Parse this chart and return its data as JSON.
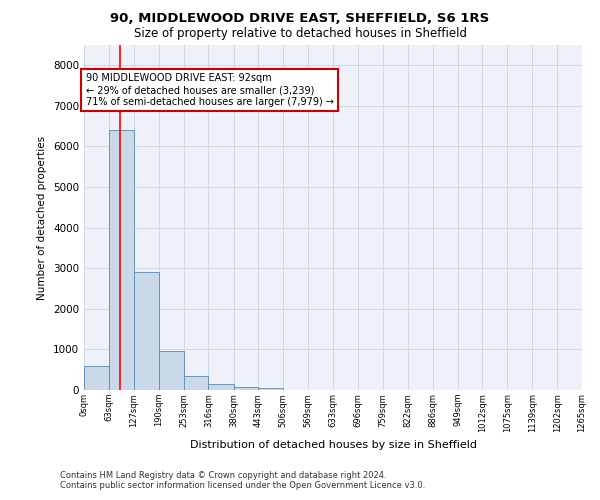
{
  "title1": "90, MIDDLEWOOD DRIVE EAST, SHEFFIELD, S6 1RS",
  "title2": "Size of property relative to detached houses in Sheffield",
  "xlabel": "Distribution of detached houses by size in Sheffield",
  "ylabel": "Number of detached properties",
  "footer1": "Contains HM Land Registry data © Crown copyright and database right 2024.",
  "footer2": "Contains public sector information licensed under the Open Government Licence v3.0.",
  "bin_labels": [
    "0sqm",
    "63sqm",
    "127sqm",
    "190sqm",
    "253sqm",
    "316sqm",
    "380sqm",
    "443sqm",
    "506sqm",
    "569sqm",
    "633sqm",
    "696sqm",
    "759sqm",
    "822sqm",
    "886sqm",
    "949sqm",
    "1012sqm",
    "1075sqm",
    "1139sqm",
    "1202sqm",
    "1265sqm"
  ],
  "bin_edges": [
    0,
    63,
    127,
    190,
    253,
    316,
    380,
    443,
    506,
    569,
    633,
    696,
    759,
    822,
    886,
    949,
    1012,
    1075,
    1139,
    1202,
    1265
  ],
  "bar_heights": [
    600,
    6400,
    2900,
    950,
    350,
    150,
    80,
    50,
    5,
    3,
    2,
    1,
    1,
    0,
    0,
    0,
    0,
    0,
    0,
    0
  ],
  "bar_color": "#c9d9e8",
  "bar_edgecolor": "#5a8ab0",
  "grid_color": "#d0d8e8",
  "background_color": "#eef2f8",
  "red_line_x": 92,
  "annotation_text1": "90 MIDDLEWOOD DRIVE EAST: 92sqm",
  "annotation_text2": "← 29% of detached houses are smaller (3,239)",
  "annotation_text3": "71% of semi-detached houses are larger (7,979) →",
  "annotation_box_color": "#cc0000",
  "ylim": [
    0,
    8500
  ],
  "yticks": [
    0,
    1000,
    2000,
    3000,
    4000,
    5000,
    6000,
    7000,
    8000
  ]
}
